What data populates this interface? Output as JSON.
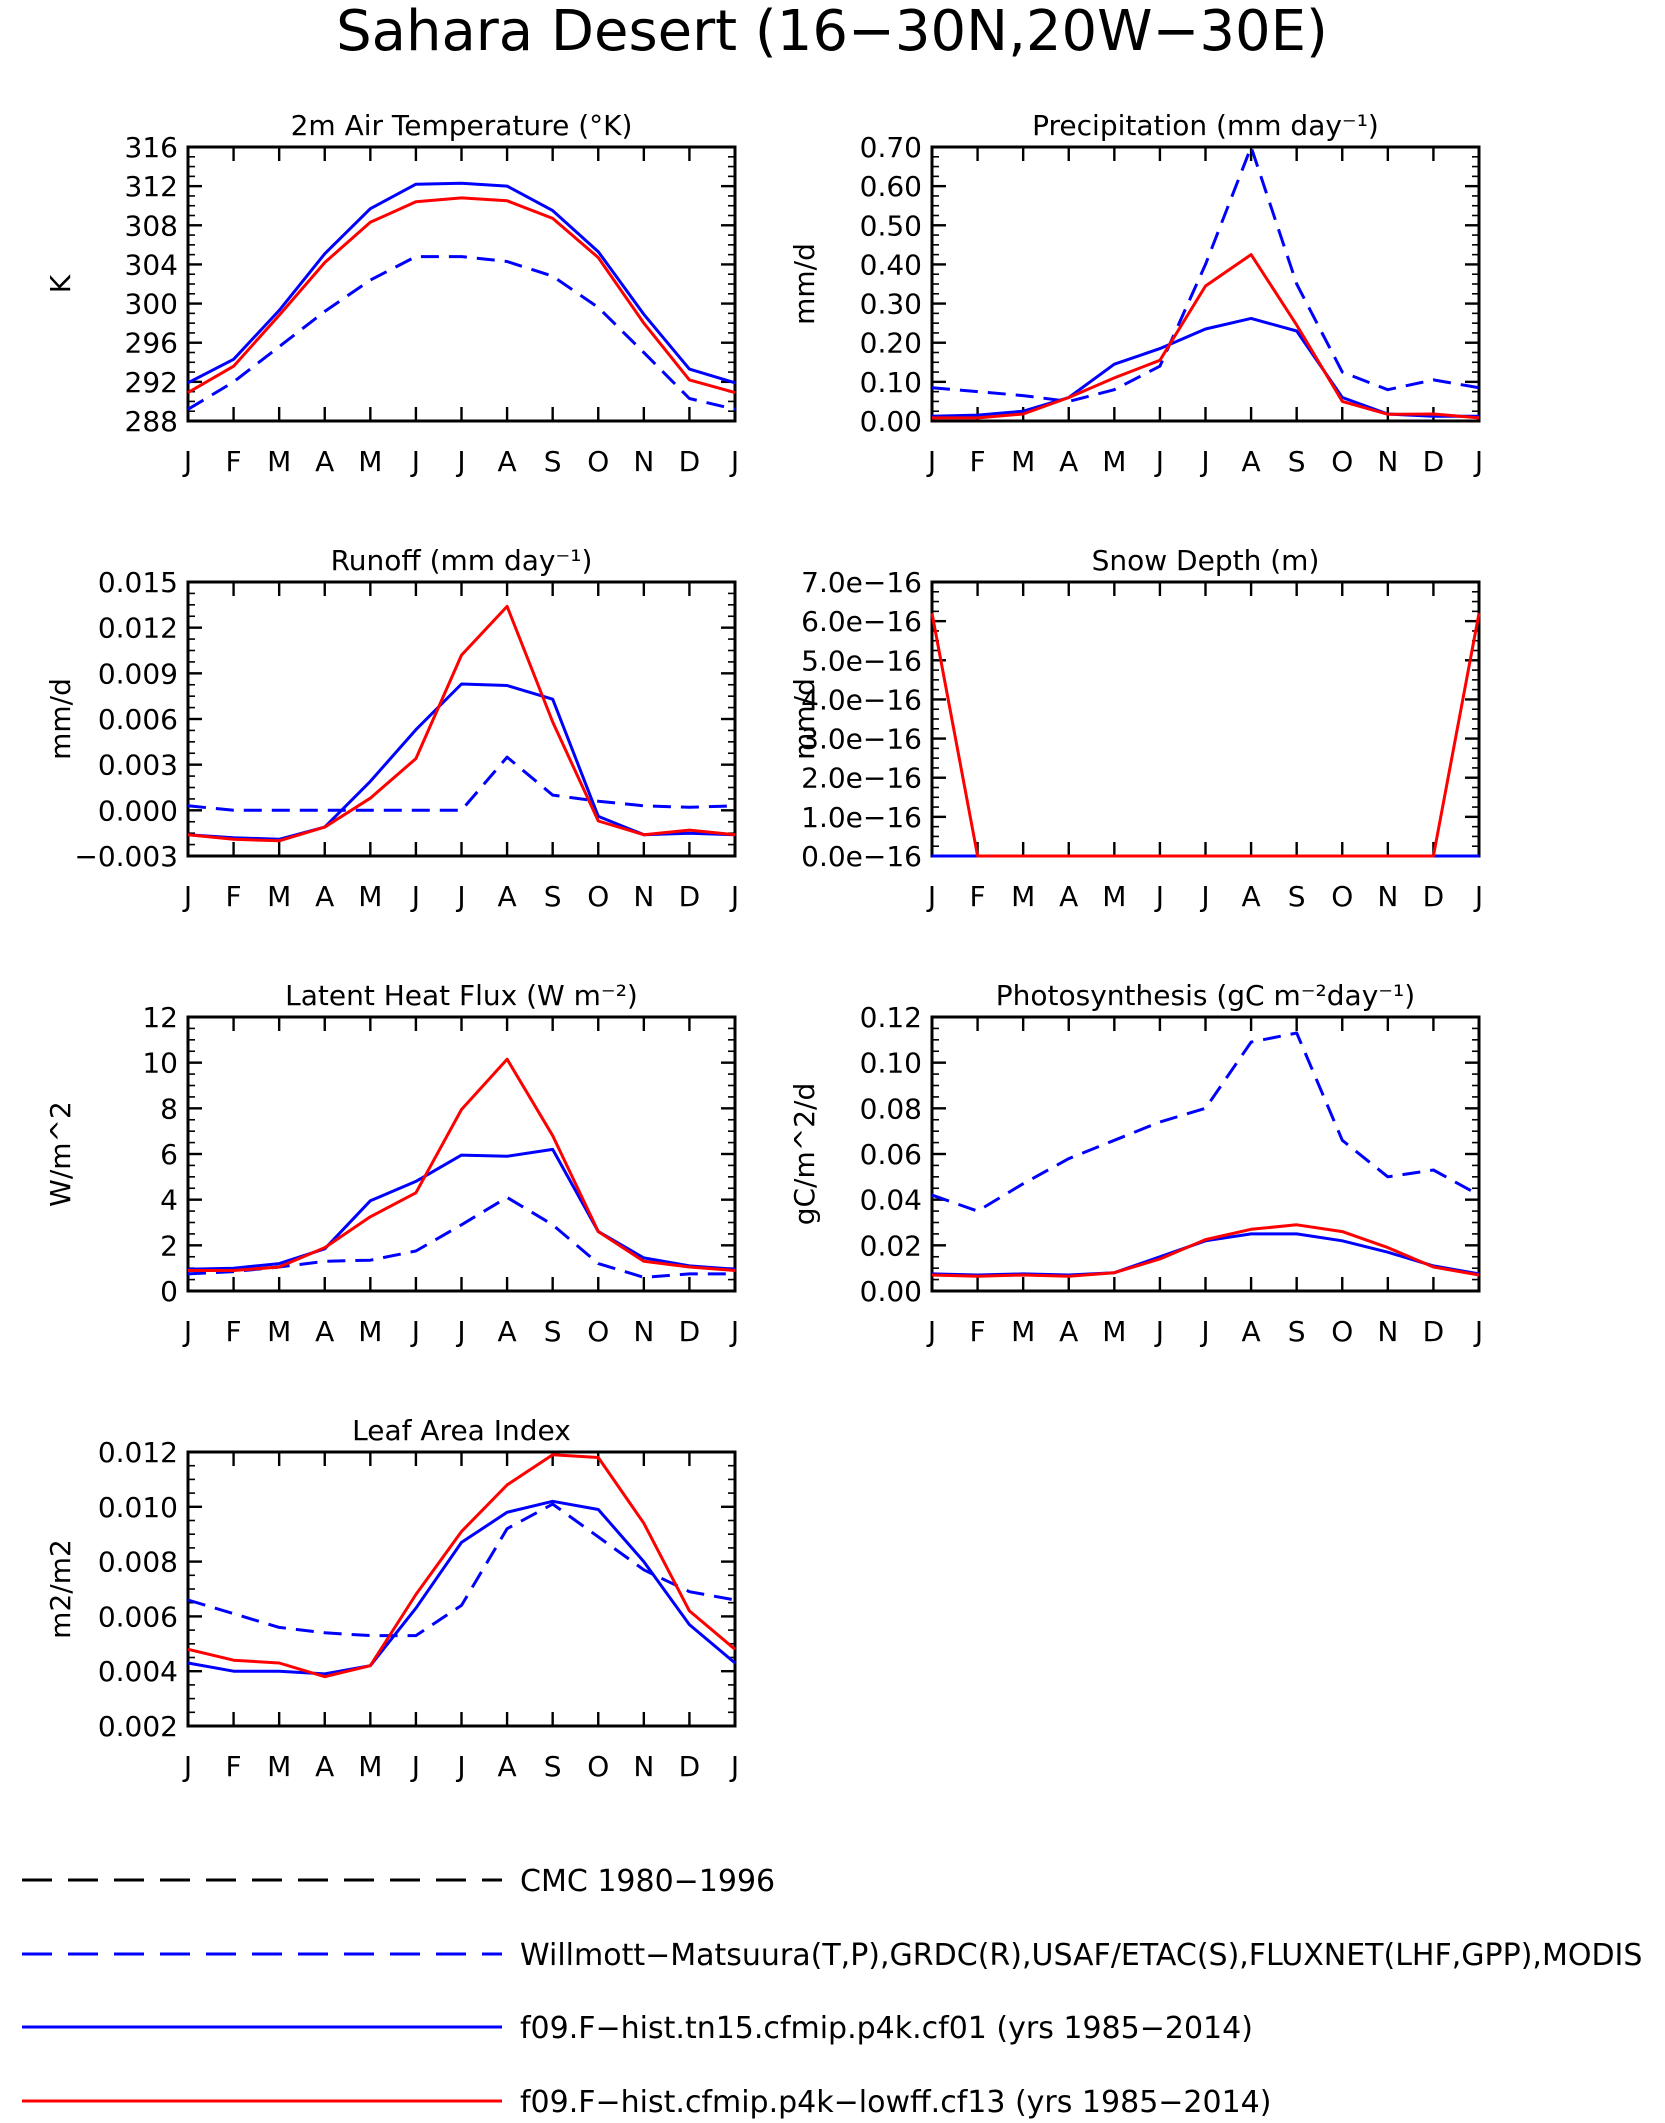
{
  "figure": {
    "title": "Sahara Desert (16−30N,20W−30E)"
  },
  "months": [
    "J",
    "F",
    "M",
    "A",
    "M",
    "J",
    "J",
    "A",
    "S",
    "O",
    "N",
    "D",
    "J"
  ],
  "legend": [
    {
      "label": "CMC 1980−1996",
      "color": "#000000",
      "dash": true
    },
    {
      "label": "Willmott−Matsuura(T,P),GRDC(R),USAF/ETAC(S),FLUXNET(LHF,GPP),MODIS",
      "color": "#0000ff",
      "dash": true
    },
    {
      "label": "f09.F−hist.tn15.cfmip.p4k.cf01 (yrs 1985−2014)",
      "color": "#0000ff",
      "dash": false
    },
    {
      "label": "f09.F−hist.cfmip.p4k−lowff.cf13 (yrs 1985−2014)",
      "color": "#ff0000",
      "dash": false
    }
  ],
  "colors": {
    "obs": "#0000ff",
    "model1": "#0000ff",
    "model2": "#ff0000",
    "axis": "#000000"
  },
  "chart_data": [
    {
      "type": "line",
      "title": "2m Air Temperature (°K)",
      "ylabel": "K",
      "ylim": [
        288,
        316
      ],
      "yticks": [
        "288",
        "292",
        "296",
        "300",
        "304",
        "308",
        "312",
        "316"
      ],
      "series": [
        {
          "style": "dashed",
          "color": "#0000ff",
          "values": [
            289.2,
            292.0,
            295.6,
            299.2,
            302.4,
            304.8,
            304.8,
            304.3,
            302.8,
            299.6,
            295.0,
            290.3,
            289.2
          ]
        },
        {
          "style": "solid",
          "color": "#0000ff",
          "values": [
            291.9,
            294.3,
            299.3,
            305.1,
            309.7,
            312.2,
            312.3,
            312.0,
            309.5,
            305.3,
            298.9,
            293.3,
            291.9
          ]
        },
        {
          "style": "solid",
          "color": "#ff0000",
          "values": [
            290.9,
            293.6,
            298.8,
            304.2,
            308.3,
            310.4,
            310.8,
            310.5,
            308.7,
            304.7,
            298.0,
            292.2,
            290.9
          ]
        }
      ]
    },
    {
      "type": "line",
      "title": "Precipitation (mm day⁻¹)",
      "ylabel": "mm/d",
      "ylim": [
        0,
        0.7
      ],
      "yticks": [
        "0.00",
        "0.10",
        "0.20",
        "0.30",
        "0.40",
        "0.50",
        "0.60",
        "0.70"
      ],
      "series": [
        {
          "style": "dashed",
          "color": "#0000ff",
          "values": [
            0.085,
            0.075,
            0.065,
            0.05,
            0.08,
            0.14,
            0.4,
            0.7,
            0.35,
            0.125,
            0.08,
            0.105,
            0.085
          ]
        },
        {
          "style": "solid",
          "color": "#0000ff",
          "values": [
            0.012,
            0.015,
            0.025,
            0.06,
            0.145,
            0.185,
            0.235,
            0.262,
            0.23,
            0.06,
            0.018,
            0.012,
            0.012
          ]
        },
        {
          "style": "solid",
          "color": "#ff0000",
          "values": [
            0.008,
            0.008,
            0.018,
            0.06,
            0.11,
            0.155,
            0.345,
            0.425,
            0.245,
            0.05,
            0.017,
            0.018,
            0.008
          ]
        }
      ]
    },
    {
      "type": "line",
      "title": "Runoff (mm day⁻¹)",
      "ylabel": "mm/d",
      "ylim": [
        -0.003,
        0.015
      ],
      "yticks": [
        "−0.003",
        "0.000",
        "0.003",
        "0.006",
        "0.009",
        "0.012",
        "0.015"
      ],
      "series": [
        {
          "style": "dashed",
          "color": "#0000ff",
          "values": [
            0.0003,
            0.0,
            0.0,
            0.0,
            0.0,
            0.0,
            0.0,
            0.0035,
            0.001,
            0.0006,
            0.0003,
            0.0002,
            0.0003
          ]
        },
        {
          "style": "solid",
          "color": "#0000ff",
          "values": [
            -0.0016,
            -0.0018,
            -0.0019,
            -0.0011,
            0.0019,
            0.0053,
            0.0083,
            0.0082,
            0.0073,
            -0.0004,
            -0.0016,
            -0.0015,
            -0.0016
          ]
        },
        {
          "style": "solid",
          "color": "#ff0000",
          "values": [
            -0.0016,
            -0.0019,
            -0.002,
            -0.0011,
            0.0008,
            0.0034,
            0.0102,
            0.0134,
            0.0058,
            -0.0007,
            -0.0016,
            -0.0013,
            -0.0016
          ]
        }
      ]
    },
    {
      "type": "line",
      "title": "Snow Depth (m)",
      "ylabel": "mm/d",
      "ylim": [
        0,
        7e-16
      ],
      "yticks": [
        "0.0e−16",
        "1.0e−16",
        "2.0e−16",
        "3.0e−16",
        "4.0e−16",
        "5.0e−16",
        "6.0e−16",
        "7.0e−16"
      ],
      "series": [
        {
          "style": "solid",
          "color": "#0000ff",
          "values": [
            0,
            0,
            0,
            0,
            0,
            0,
            0,
            0,
            0,
            0,
            0,
            0,
            0
          ]
        },
        {
          "style": "solid",
          "color": "#ff0000",
          "values": [
            6.2e-16,
            0,
            0,
            0,
            0,
            0,
            0,
            0,
            0,
            0,
            0,
            0,
            6.2e-16
          ]
        }
      ]
    },
    {
      "type": "line",
      "title": "Latent Heat Flux (W m⁻²)",
      "ylabel": "W/m^2",
      "ylim": [
        0,
        12
      ],
      "yticks": [
        "0",
        "2",
        "4",
        "6",
        "8",
        "10",
        "12"
      ],
      "series": [
        {
          "style": "dashed",
          "color": "#0000ff",
          "values": [
            0.75,
            0.85,
            1.05,
            1.3,
            1.35,
            1.75,
            2.9,
            4.1,
            2.9,
            1.2,
            0.6,
            0.75,
            0.75
          ]
        },
        {
          "style": "solid",
          "color": "#0000ff",
          "values": [
            0.95,
            1.0,
            1.2,
            1.85,
            3.95,
            4.8,
            5.95,
            5.9,
            6.2,
            2.6,
            1.45,
            1.1,
            0.95
          ]
        },
        {
          "style": "solid",
          "color": "#ff0000",
          "values": [
            0.9,
            0.9,
            1.05,
            1.9,
            3.25,
            4.3,
            7.95,
            10.15,
            6.8,
            2.6,
            1.3,
            1.05,
            0.9
          ]
        }
      ]
    },
    {
      "type": "line",
      "title": "Photosynthesis (gC m⁻²day⁻¹)",
      "ylabel": "gC/m^2/d",
      "ylim": [
        0,
        0.12
      ],
      "yticks": [
        "0.00",
        "0.02",
        "0.04",
        "0.06",
        "0.08",
        "0.10",
        "0.12"
      ],
      "series": [
        {
          "style": "dashed",
          "color": "#0000ff",
          "values": [
            0.042,
            0.035,
            0.047,
            0.058,
            0.066,
            0.074,
            0.08,
            0.109,
            0.113,
            0.066,
            0.05,
            0.053,
            0.042
          ]
        },
        {
          "style": "solid",
          "color": "#0000ff",
          "values": [
            0.0075,
            0.007,
            0.0075,
            0.007,
            0.008,
            0.015,
            0.022,
            0.025,
            0.025,
            0.022,
            0.017,
            0.011,
            0.0075
          ]
        },
        {
          "style": "solid",
          "color": "#ff0000",
          "values": [
            0.007,
            0.0065,
            0.007,
            0.0065,
            0.008,
            0.014,
            0.0225,
            0.027,
            0.029,
            0.026,
            0.019,
            0.0105,
            0.007
          ]
        }
      ]
    },
    {
      "type": "line",
      "title": "Leaf Area Index",
      "ylabel": "m2/m2",
      "ylim": [
        0.002,
        0.012
      ],
      "yticks": [
        "0.002",
        "0.004",
        "0.006",
        "0.008",
        "0.010",
        "0.012"
      ],
      "series": [
        {
          "style": "dashed",
          "color": "#0000ff",
          "values": [
            0.0066,
            0.0061,
            0.0056,
            0.0054,
            0.0053,
            0.0053,
            0.0064,
            0.0092,
            0.0101,
            0.0089,
            0.0077,
            0.0069,
            0.0066
          ]
        },
        {
          "style": "solid",
          "color": "#0000ff",
          "values": [
            0.0043,
            0.004,
            0.004,
            0.0039,
            0.0042,
            0.0063,
            0.0087,
            0.0098,
            0.0102,
            0.0099,
            0.008,
            0.0057,
            0.0043
          ]
        },
        {
          "style": "solid",
          "color": "#ff0000",
          "values": [
            0.0048,
            0.0044,
            0.0043,
            0.0038,
            0.0042,
            0.0068,
            0.0091,
            0.0108,
            0.0119,
            0.0118,
            0.0094,
            0.0062,
            0.0048
          ]
        }
      ]
    }
  ]
}
